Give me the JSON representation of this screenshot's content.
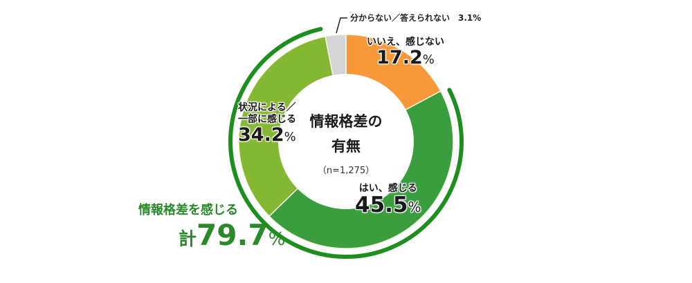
{
  "chart_data": {
    "type": "pie",
    "subtype": "donut",
    "title": "情報格差の有無",
    "subtitle": "(n=1,275)",
    "sample_size": 1275,
    "unit": "%",
    "slices": [
      {
        "label": "いいえ、感じない",
        "value": 17.2,
        "color": "#f7993a"
      },
      {
        "label": "はい、感じる",
        "value": 45.5,
        "color": "#3a9e3e"
      },
      {
        "label": "状況による／一部に感じる",
        "value": 34.2,
        "color": "#85b832"
      },
      {
        "label": "分からない／答えられない",
        "value": 3.1,
        "color": "#d6d6d6"
      }
    ],
    "start_angle_deg": 0,
    "direction": "clockwise",
    "annotations": [
      {
        "text": "情報格差を感じる 計79.7%",
        "covers": [
          "はい、感じる",
          "状況による／一部に感じる"
        ],
        "color": "#1e8f1e"
      }
    ],
    "legend": "none (labels placed on slices)"
  },
  "center": {
    "title_line1": "情報格差の",
    "title_line2": "有無",
    "n": "（n=1,275）"
  },
  "labels": {
    "no": {
      "cat": "いいえ、感じない",
      "num": "17.2",
      "pct": "%"
    },
    "yes": {
      "cat": "はい、感じる",
      "num": "45.5",
      "pct": "%"
    },
    "partial": {
      "cat_line1": "状況による／",
      "cat_line2": "一部に感じる",
      "num": "34.2",
      "pct": "%"
    },
    "dk": {
      "text": "分からない／答えられない　3.1%"
    }
  },
  "summary": {
    "label": "情報格差を感じる",
    "kei": "計",
    "num": "79.7",
    "pct": "%"
  },
  "colors": {
    "orange": "#f7993a",
    "dark_green": "#3a9e3e",
    "light_green": "#85b832",
    "gray": "#d6d6d6",
    "arc_green": "#1e8f1e",
    "summary_text": "#2a8a2a"
  }
}
